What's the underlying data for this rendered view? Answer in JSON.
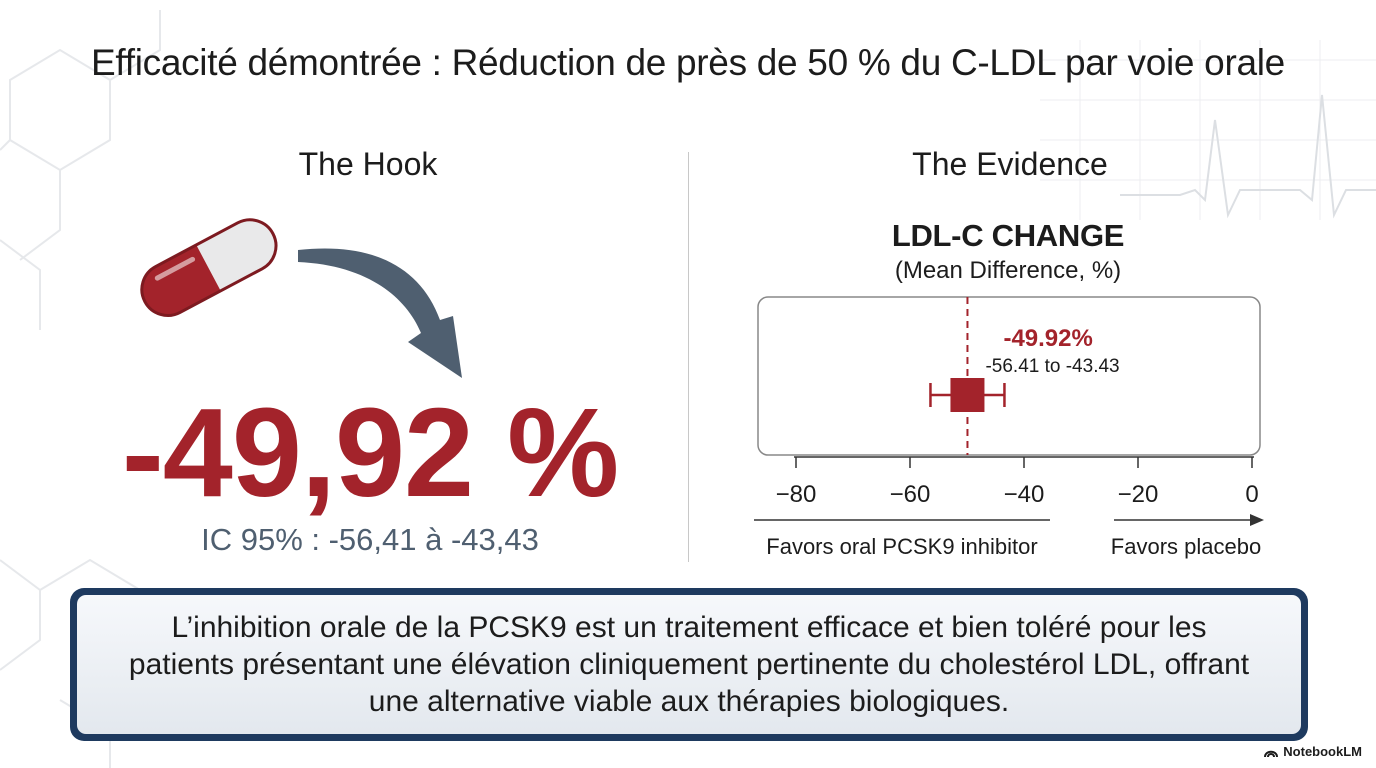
{
  "title": "Efficacité démontrée : Réduction de près de 50 % du C-LDL par voie orale",
  "hook": {
    "heading": "The Hook",
    "pill_icon": "pill-icon",
    "arrow_icon": "curved-arrow-icon",
    "value": "-49,92 %",
    "ci": "IC 95% : -56,41 à -43,43"
  },
  "evidence": {
    "heading": "The Evidence"
  },
  "chart_data": {
    "type": "forest",
    "title": "LDL-C CHANGE",
    "subtitle": "(Mean Difference, %)",
    "estimate": -49.92,
    "ci": [
      -56.41,
      -43.43
    ],
    "estimate_label": "-49.92%",
    "ci_label": "-56.41 to -43.43",
    "xlim": [
      -80,
      0
    ],
    "ticks": [
      -80,
      -60,
      -40,
      -20,
      0
    ],
    "tick_labels": [
      "−80",
      "−60",
      "−40",
      "−20",
      "0"
    ],
    "favors_left": "Favors oral PCSK9 inhibitor",
    "favors_right": "Favors placebo",
    "colors": {
      "marker": "#a3232b",
      "axis": "#333333",
      "box": "#888888"
    }
  },
  "conclusion": "L’inhibition orale de la PCSK9 est un traitement efficace et bien toléré pour les patients présentant une élévation cliniquement pertinente du cholestérol LDL, offrant une alternative viable aux thérapies biologiques.",
  "brand": "NotebookLM",
  "colors": {
    "accent_red": "#a3232b",
    "navy": "#1e3a5f",
    "slate": "#4f5f70"
  }
}
